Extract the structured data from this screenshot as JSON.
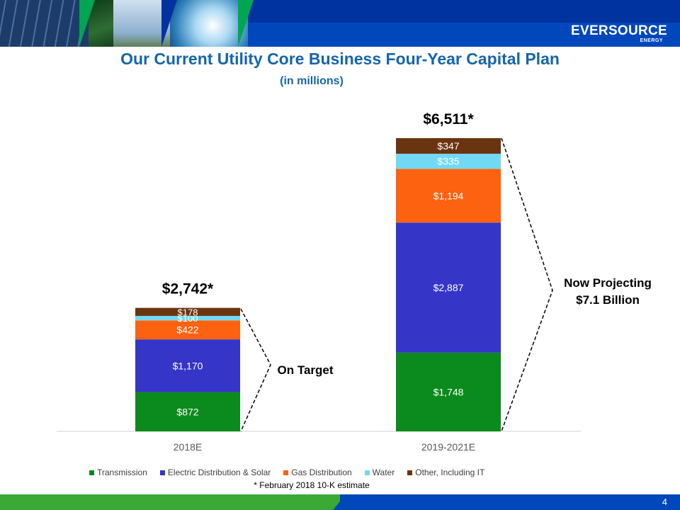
{
  "header": {
    "logo_text": "EVERSOURCE",
    "logo_subtext": "ENERGY"
  },
  "title": "Our Current Utility Core Business Four-Year Capital Plan",
  "subtitle": "(in millions)",
  "chart_data": {
    "type": "bar",
    "stacked": true,
    "categories": [
      "2018E",
      "2019-2021E"
    ],
    "series": [
      {
        "name": "Transmission",
        "values": [
          872,
          1748
        ],
        "labels": [
          "$872",
          "$1,748"
        ],
        "color": "#0b8a1d"
      },
      {
        "name": "Electric Distribution & Solar",
        "values": [
          1170,
          2887
        ],
        "labels": [
          "$1,170",
          "$2,887"
        ],
        "color": "#3535c8"
      },
      {
        "name": "Gas Distribution",
        "values": [
          422,
          1194
        ],
        "labels": [
          "$422",
          "$1,194"
        ],
        "color": "#fc6210"
      },
      {
        "name": "Water",
        "values": [
          100,
          335
        ],
        "labels": [
          "$100",
          "$335"
        ],
        "color": "#72d9f5"
      },
      {
        "name": "Other, Including IT",
        "values": [
          178,
          347
        ],
        "labels": [
          "$178",
          "$347"
        ],
        "color": "#6b3410"
      }
    ],
    "totals": [
      "$2,742*",
      "$6,511*"
    ],
    "legend_position": "bottom",
    "grid": false,
    "annotations": [
      "On Target",
      "Now Projecting",
      "$7.1 Billion"
    ]
  },
  "footnote": "* February 2018 10-K estimate",
  "page_number": "4"
}
